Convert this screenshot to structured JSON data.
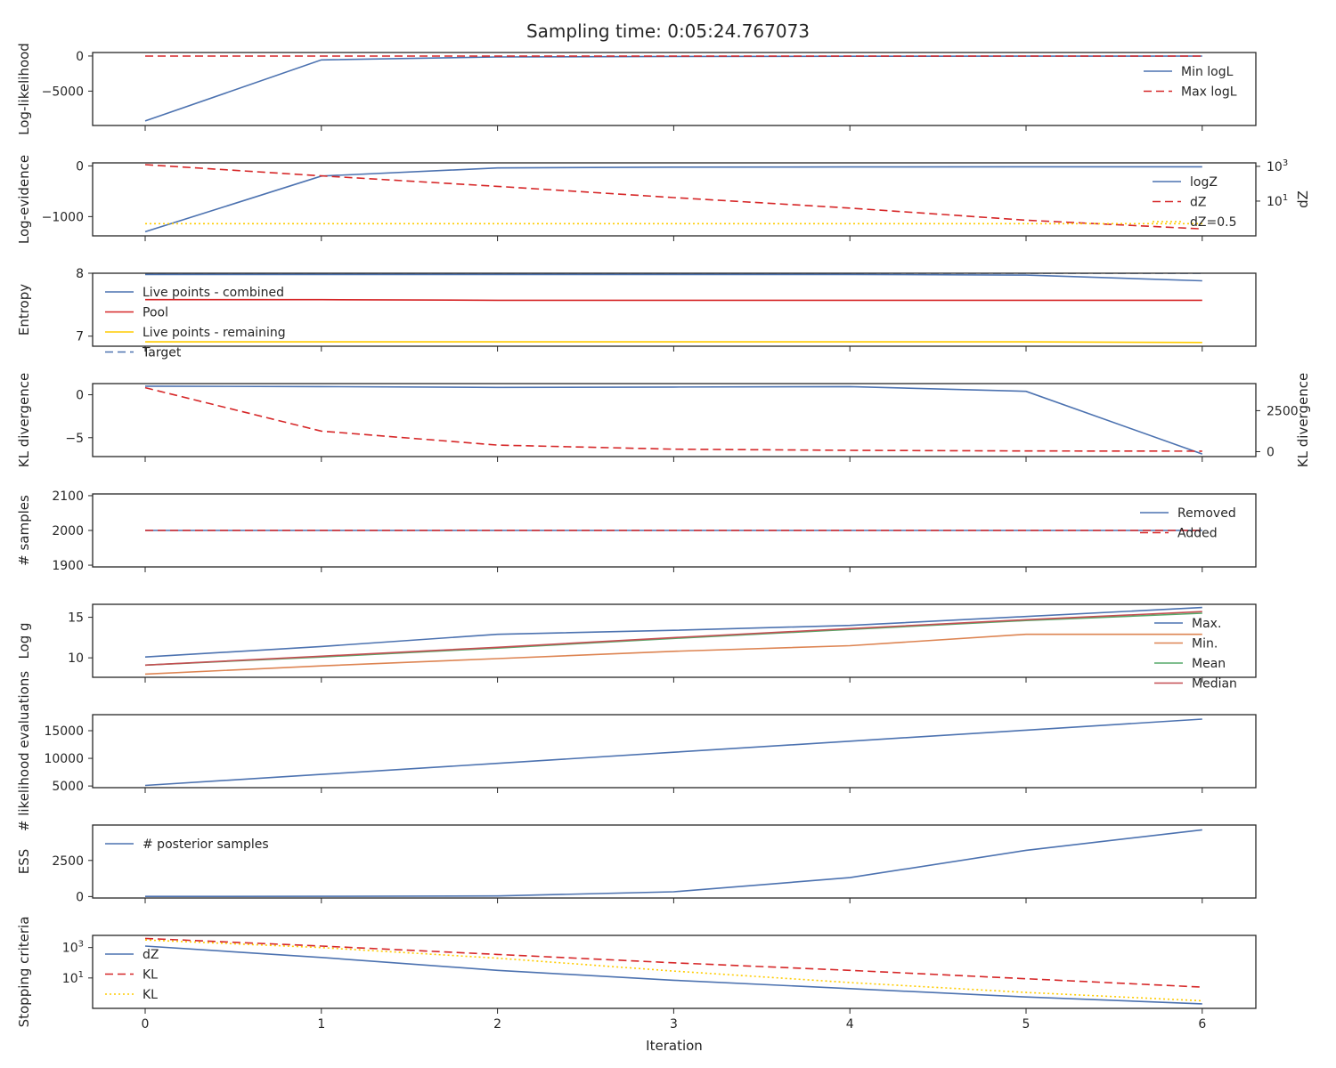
{
  "title": "Sampling time: 0:05:24.767073",
  "xlabel": "Iteration",
  "x_ticks": [
    "0",
    "1",
    "2",
    "3",
    "4",
    "5",
    "6"
  ],
  "chart_data": [
    {
      "type": "line",
      "ylabel": "Log-likelihood",
      "x": [
        0,
        1,
        2,
        3,
        4,
        5,
        6
      ],
      "ylim": [
        -9900,
        500
      ],
      "y_ticks": [
        {
          "v": 0,
          "label": "0"
        },
        {
          "v": -5000,
          "label": "−5000"
        }
      ],
      "legend": {
        "loc": "upper right"
      },
      "series": [
        {
          "name": "Min logL",
          "color": "#4c72b0",
          "dash": "solid",
          "values": [
            -9250,
            -550,
            -130,
            -60,
            -30,
            -15,
            -10
          ]
        },
        {
          "name": "Max logL",
          "color": "#d62728",
          "dash": "dashed",
          "values": [
            -8,
            -6,
            -5,
            -5,
            -4,
            -4,
            -4
          ]
        }
      ]
    },
    {
      "type": "line",
      "ylabel": "Log-evidence",
      "x": [
        0,
        1,
        2,
        3,
        4,
        5,
        6
      ],
      "ylim": [
        -1380,
        60
      ],
      "y_ticks": [
        {
          "v": 0,
          "label": "0"
        },
        {
          "v": -1000,
          "label": "−1000"
        }
      ],
      "y2label": "dZ",
      "y2scale": "log",
      "y2lim_log10": [
        -1.0,
        3.2
      ],
      "y2_ticks": [
        {
          "v": 3,
          "label": "10^3"
        },
        {
          "v": 1,
          "label": "10^1"
        }
      ],
      "legend": {
        "loc": "upper right"
      },
      "series": [
        {
          "name": "logZ",
          "color": "#4c72b0",
          "dash": "solid",
          "axis": "left",
          "values": [
            -1300,
            -200,
            -40,
            -25,
            -20,
            -18,
            -17
          ]
        },
        {
          "name": "dZ",
          "color": "#d62728",
          "dash": "dashed",
          "axis": "right",
          "log10_values": [
            3.1,
            2.45,
            1.85,
            1.2,
            0.6,
            -0.1,
            -0.6
          ]
        },
        {
          "name": "dZ=0.5",
          "color": "#ffcc00",
          "dash": "dotted",
          "axis": "right",
          "log10_values": [
            -0.3,
            -0.3,
            -0.3,
            -0.3,
            -0.3,
            -0.3,
            -0.3
          ]
        }
      ]
    },
    {
      "type": "line",
      "ylabel": "Entropy",
      "x": [
        0,
        1,
        2,
        3,
        4,
        5,
        6
      ],
      "ylim": [
        6.84,
        8.0
      ],
      "y_ticks": [
        {
          "v": 8,
          "label": "8"
        },
        {
          "v": 7,
          "label": "7"
        }
      ],
      "legend": {
        "loc": "upper left"
      },
      "series": [
        {
          "name": "Live points - combined",
          "color": "#4c72b0",
          "dash": "solid",
          "values": [
            7.98,
            7.98,
            7.98,
            7.98,
            7.98,
            7.97,
            7.88
          ]
        },
        {
          "name": "Pool",
          "color": "#d62728",
          "dash": "solid",
          "values": [
            7.58,
            7.58,
            7.57,
            7.57,
            7.57,
            7.57,
            7.57
          ]
        },
        {
          "name": "Live points - remaining",
          "color": "#ffcc00",
          "dash": "solid",
          "values": [
            6.91,
            6.91,
            6.91,
            6.91,
            6.91,
            6.91,
            6.9
          ]
        },
        {
          "name": "Target",
          "color": "#4c72b0",
          "dash": "dashed",
          "values": [
            8.0,
            8.0,
            8.0,
            8.0,
            8.0,
            8.0,
            8.0
          ]
        }
      ]
    },
    {
      "type": "line",
      "ylabel": "KL divergence",
      "x": [
        0,
        1,
        2,
        3,
        4,
        5,
        6
      ],
      "ylim": [
        -7.2,
        1.3
      ],
      "y_ticks": [
        {
          "v": 0,
          "label": "0"
        },
        {
          "v": -5,
          "label": "−5"
        }
      ],
      "y2label": "KL divergence",
      "y2lim": [
        -300,
        4150
      ],
      "y2_ticks": [
        {
          "v": 2500,
          "label": "2500"
        },
        {
          "v": 0,
          "label": "0"
        }
      ],
      "series": [
        {
          "name": "",
          "color": "#4c72b0",
          "dash": "solid",
          "axis": "left",
          "values": [
            1.0,
            0.95,
            0.85,
            0.9,
            0.95,
            0.4,
            -6.9
          ]
        },
        {
          "name": "",
          "color": "#d62728",
          "dash": "dashed",
          "axis": "right",
          "values": [
            3900,
            1250,
            400,
            150,
            80,
            40,
            30
          ]
        }
      ]
    },
    {
      "type": "line",
      "ylabel": "# samples",
      "x": [
        0,
        1,
        2,
        3,
        4,
        5,
        6
      ],
      "ylim": [
        1895,
        2105
      ],
      "y_ticks": [
        {
          "v": 2100,
          "label": "2100"
        },
        {
          "v": 2000,
          "label": "2000"
        },
        {
          "v": 1900,
          "label": "1900"
        }
      ],
      "legend": {
        "loc": "upper right"
      },
      "series": [
        {
          "name": "Removed",
          "color": "#4c72b0",
          "dash": "solid",
          "values": [
            2000,
            2000,
            2000,
            2000,
            2000,
            2000,
            2000
          ]
        },
        {
          "name": "Added",
          "color": "#d62728",
          "dash": "dashed",
          "values": [
            2000,
            2000,
            2000,
            2000,
            2000,
            2000,
            2000
          ]
        }
      ]
    },
    {
      "type": "line",
      "ylabel": "Log g",
      "x": [
        0,
        1,
        2,
        3,
        4,
        5,
        6
      ],
      "ylim": [
        7.6,
        16.6
      ],
      "y_ticks": [
        {
          "v": 15,
          "label": "15"
        },
        {
          "v": 10,
          "label": "10"
        }
      ],
      "legend": {
        "loc": "upper right"
      },
      "series": [
        {
          "name": "Max.",
          "color": "#4c72b0",
          "dash": "solid",
          "values": [
            10.1,
            11.4,
            12.9,
            13.4,
            14.0,
            15.1,
            16.2
          ]
        },
        {
          "name": "Min.",
          "color": "#dd8452",
          "dash": "solid",
          "values": [
            8.0,
            9.0,
            9.9,
            10.8,
            11.5,
            12.9,
            12.9
          ]
        },
        {
          "name": "Mean",
          "color": "#55a868",
          "dash": "solid",
          "values": [
            9.1,
            10.1,
            11.2,
            12.4,
            13.5,
            14.6,
            15.5
          ]
        },
        {
          "name": "Median",
          "color": "#c44e52",
          "dash": "solid",
          "values": [
            9.1,
            10.2,
            11.3,
            12.5,
            13.6,
            14.7,
            15.7
          ]
        }
      ]
    },
    {
      "type": "line",
      "ylabel": "# likelihood evaluations",
      "x": [
        0,
        1,
        2,
        3,
        4,
        5,
        6
      ],
      "ylim": [
        4700,
        17900
      ],
      "y_ticks": [
        {
          "v": 15000,
          "label": "15000"
        },
        {
          "v": 10000,
          "label": "10000"
        },
        {
          "v": 5000,
          "label": "5000"
        }
      ],
      "series": [
        {
          "name": "",
          "color": "#4c72b0",
          "dash": "solid",
          "values": [
            5100,
            7100,
            9100,
            11100,
            13100,
            15100,
            17100
          ]
        }
      ]
    },
    {
      "type": "line",
      "ylabel": "ESS",
      "x": [
        0,
        1,
        2,
        3,
        4,
        5,
        6
      ],
      "ylim": [
        -100,
        4950
      ],
      "y_ticks": [
        {
          "v": 2500,
          "label": "2500"
        },
        {
          "v": 0,
          "label": "0"
        }
      ],
      "legend": {
        "loc": "upper left"
      },
      "series": [
        {
          "name": "# posterior samples",
          "color": "#4c72b0",
          "dash": "solid",
          "values": [
            10,
            15,
            40,
            330,
            1310,
            3200,
            4620
          ]
        }
      ]
    },
    {
      "type": "line",
      "ylabel": "Stopping criteria",
      "yscale": "log",
      "x": [
        0,
        1,
        2,
        3,
        4,
        5,
        6
      ],
      "ylim_log10": [
        -1.0,
        3.8
      ],
      "y_ticks": [
        {
          "v": 3,
          "label": "10^3"
        },
        {
          "v": 1,
          "label": "10^1"
        }
      ],
      "legend": {
        "loc": "upper left"
      },
      "series": [
        {
          "name": "dZ",
          "color": "#4c72b0",
          "dash": "solid",
          "log10_values": [
            3.1,
            2.35,
            1.5,
            0.85,
            0.3,
            -0.25,
            -0.7
          ]
        },
        {
          "name": "KL",
          "color": "#d62728",
          "dash": "dashed",
          "log10_values": [
            3.6,
            3.1,
            2.55,
            2.0,
            1.5,
            0.95,
            0.4
          ]
        },
        {
          "name": "KL",
          "color": "#ffcc00",
          "dash": "dotted",
          "log10_values": [
            3.5,
            3.0,
            2.3,
            1.45,
            0.7,
            0.05,
            -0.5
          ]
        }
      ]
    }
  ]
}
